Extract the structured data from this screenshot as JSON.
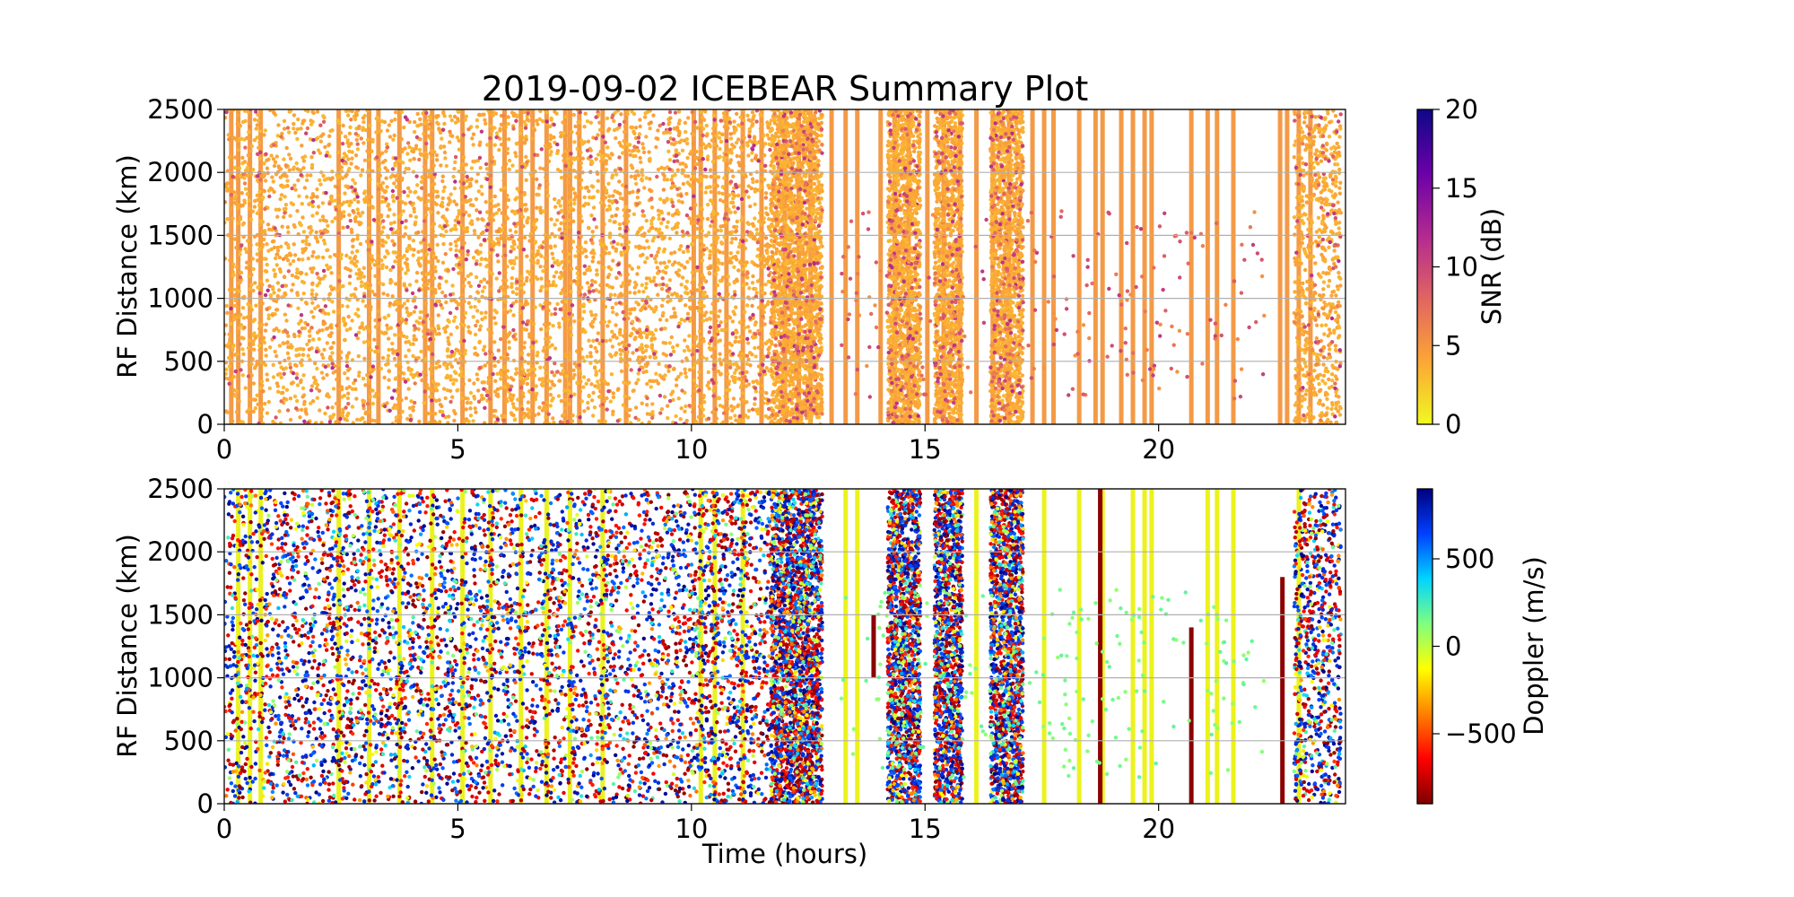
{
  "title": "2019-09-02 ICEBEAR Summary Plot",
  "chart_data": [
    {
      "type": "scatter",
      "panel": "top",
      "ylabel": "RF Distance (km)",
      "xlabel": "",
      "xlim": [
        0,
        24
      ],
      "ylim": [
        0,
        2500
      ],
      "xticks": [
        "0",
        "5",
        "10",
        "15",
        "20"
      ],
      "xtick_values": [
        0,
        5,
        10,
        15,
        20
      ],
      "yticks": [
        "0",
        "500",
        "1000",
        "1500",
        "2000",
        "2500"
      ],
      "ytick_values": [
        0,
        500,
        1000,
        1500,
        2000,
        2500
      ],
      "grid": "horizontal",
      "color_quantity": "SNR",
      "colorbar": {
        "label": "SNR (dB)",
        "range": [
          0,
          20
        ],
        "ticks": [
          "0",
          "5",
          "10",
          "15",
          "20"
        ],
        "tick_values": [
          0,
          5,
          10,
          15,
          20
        ],
        "colormap": [
          "#f0f921",
          "#fca636",
          "#e16462",
          "#b12a90",
          "#6a00a8",
          "#0d0887"
        ]
      },
      "dense_bands": [
        [
          11.7,
          12.8
        ],
        [
          14.2,
          14.9
        ],
        [
          15.2,
          15.8
        ],
        [
          16.4,
          17.1
        ]
      ],
      "stripes": [
        0.15,
        0.3,
        0.55,
        0.78,
        2.45,
        3.1,
        3.3,
        3.75,
        4.3,
        4.45,
        5.1,
        5.7,
        6.0,
        6.35,
        6.6,
        6.9,
        7.3,
        7.4,
        7.6,
        8.1,
        8.6,
        10.05,
        10.2,
        10.5,
        10.75,
        11.1,
        11.5,
        12.0,
        12.3,
        12.55,
        13.0,
        13.3,
        13.55,
        14.05,
        14.35,
        14.65,
        15.05,
        15.4,
        15.75,
        16.1,
        16.45,
        16.8,
        17.3,
        17.55,
        17.75,
        18.3,
        18.65,
        18.8,
        19.2,
        19.45,
        19.7,
        19.85,
        20.7,
        21.05,
        21.25,
        21.6,
        22.6,
        22.75,
        23.0,
        23.25
      ]
    },
    {
      "type": "scatter",
      "panel": "bottom",
      "ylabel": "RF Distance (km)",
      "xlabel": "Time (hours)",
      "xlim": [
        0,
        24
      ],
      "ylim": [
        0,
        2500
      ],
      "xticks": [
        "0",
        "5",
        "10",
        "15",
        "20"
      ],
      "xtick_values": [
        0,
        5,
        10,
        15,
        20
      ],
      "yticks": [
        "0",
        "500",
        "1000",
        "1500",
        "2000",
        "2500"
      ],
      "ytick_values": [
        0,
        500,
        1000,
        1500,
        2000,
        2500
      ],
      "grid": "horizontal",
      "color_quantity": "Doppler",
      "colorbar": {
        "label": "Doppler (m/s)",
        "range": [
          -900,
          900
        ],
        "ticks": [
          "−500",
          "0",
          "500"
        ],
        "tick_values": [
          -500,
          0,
          500
        ],
        "colormap": [
          "#7f0000",
          "#ff0000",
          "#ff8000",
          "#ffff00",
          "#7fff7f",
          "#00d4ff",
          "#0040ff",
          "#00007f"
        ]
      },
      "dense_bands": [
        [
          11.7,
          12.8
        ],
        [
          14.2,
          14.9
        ],
        [
          15.2,
          15.8
        ],
        [
          16.4,
          17.1
        ]
      ],
      "stripes": [
        0.3,
        0.55,
        0.78,
        2.45,
        3.1,
        3.75,
        4.45,
        5.1,
        5.7,
        6.35,
        6.9,
        7.4,
        8.1,
        10.2,
        10.5,
        11.1,
        13.3,
        13.55,
        16.1,
        17.55,
        18.3,
        18.8,
        19.45,
        19.7,
        19.85,
        21.05,
        21.25,
        21.6,
        23.0
      ],
      "dark_red_stripes": [
        [
          20.7,
          0,
          1400
        ],
        [
          22.65,
          0,
          1800
        ],
        [
          13.9,
          1000,
          1500
        ],
        [
          18.75,
          0,
          2500
        ]
      ]
    }
  ]
}
